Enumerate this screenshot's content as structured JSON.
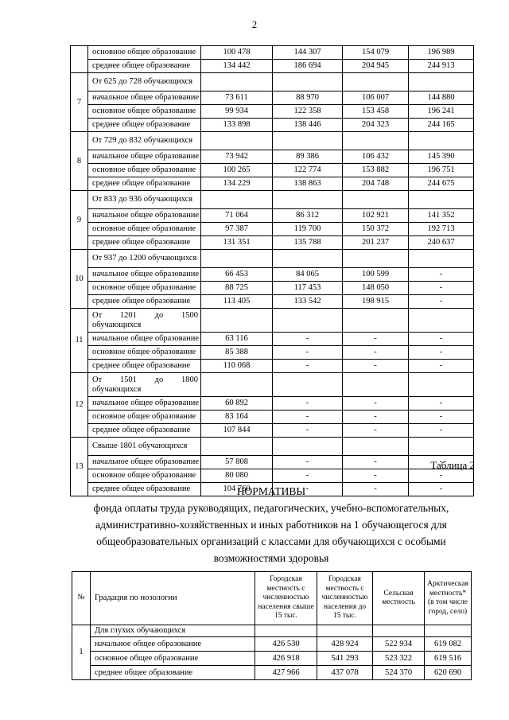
{
  "page": {
    "number": "2"
  },
  "colors": {
    "text": "#000000",
    "background": "#ffffff"
  },
  "caption": "Таблица 2",
  "title": {
    "heading": "НОРМАТИВЫ",
    "body": "фонда оплаты труда руководящих, педагогических, учебно-вспомогательных, административно-хозяйственных и иных работников на 1 обучающегося для общеобразовательных организаций с классами для обучающихся с особыми возможностями здоровья"
  },
  "table1": {
    "groups": [
      {
        "num": "",
        "rows": [
          {
            "label": "основное общее образование",
            "values": [
              "100 478",
              "144 307",
              "154 079",
              "196 989"
            ]
          },
          {
            "label": "среднее общее образование",
            "values": [
              "134 442",
              "186 694",
              "204 945",
              "244 913"
            ]
          }
        ]
      },
      {
        "num": "7",
        "category": "От 625 до 728 обучающихся",
        "rows": [
          {
            "label": "начальное общее образование",
            "values": [
              "73 611",
              "88 970",
              "106 007",
              "144 880"
            ]
          },
          {
            "label": "основное общее образование",
            "values": [
              "99 934",
              "122 358",
              "153 458",
              "196 241"
            ]
          },
          {
            "label": "среднее общее образование",
            "values": [
              "133 898",
              "138 446",
              "204 323",
              "244 165"
            ]
          }
        ]
      },
      {
        "num": "8",
        "category": "От 729 до 832 обучающихся",
        "rows": [
          {
            "label": "начальное общее образование",
            "values": [
              "73 942",
              "89 386",
              "106 432",
              "145 390"
            ]
          },
          {
            "label": "основное общее образование",
            "values": [
              "100 265",
              "122 774",
              "153 882",
              "196 751"
            ]
          },
          {
            "label": "среднее общее образование",
            "values": [
              "134 229",
              "138 863",
              "204 748",
              "244 675"
            ]
          }
        ]
      },
      {
        "num": "9",
        "category": "От 833 до 936 обучающихся",
        "rows": [
          {
            "label": "начальное общее образование",
            "values": [
              "71 064",
              "86 312",
              "102 921",
              "141 352"
            ]
          },
          {
            "label": "основное общее образование",
            "values": [
              "97 387",
              "119 700",
              "150 372",
              "192 713"
            ]
          },
          {
            "label": "среднее общее образование",
            "values": [
              "131 351",
              "135 788",
              "201 237",
              "240 637"
            ]
          }
        ]
      },
      {
        "num": "10",
        "category": "От 937 до 1200 обучающихся",
        "rows": [
          {
            "label": "начальное общее образование",
            "values": [
              "66 453",
              "84 065",
              "100 599",
              "-"
            ]
          },
          {
            "label": "основное общее образование",
            "values": [
              "88 725",
              "117 453",
              "148 050",
              "-"
            ]
          },
          {
            "label": "среднее общее образование",
            "values": [
              "113 405",
              "133 542",
              "198 915",
              "-"
            ]
          }
        ]
      },
      {
        "num": "11",
        "category": "От 1201 до 1500 обучающихся",
        "tall": true,
        "rows": [
          {
            "label": "начальное общее образование",
            "values": [
              "63 116",
              "-",
              "-",
              "-"
            ]
          },
          {
            "label": "основное общее образование",
            "values": [
              "85 388",
              "-",
              "-",
              "-"
            ]
          },
          {
            "label": "среднее общее образование",
            "values": [
              "110 068",
              "-",
              "-",
              "-"
            ]
          }
        ]
      },
      {
        "num": "12",
        "category": "От 1501 до 1800 обучающихся",
        "tall": true,
        "rows": [
          {
            "label": "начальное общее образование",
            "values": [
              "60 892",
              "-",
              "-",
              "-"
            ]
          },
          {
            "label": "основное общее образование",
            "values": [
              "83 164",
              "-",
              "-",
              "-"
            ]
          },
          {
            "label": "среднее общее образование",
            "values": [
              "107 844",
              "-",
              "-",
              "-"
            ]
          }
        ]
      },
      {
        "num": "13",
        "category": "Свыше 1801 обучающихся",
        "rows": [
          {
            "label": "начальное общее образование",
            "values": [
              "57 808",
              "-",
              "-",
              "-"
            ]
          },
          {
            "label": "основное общее образование",
            "values": [
              "80 080",
              "-",
              "-",
              "-"
            ]
          },
          {
            "label": "среднее общее образование",
            "values": [
              "104 760",
              "-",
              "-",
              "-"
            ]
          }
        ]
      }
    ]
  },
  "table2": {
    "headers": [
      "№",
      "Градация по нозологии",
      "Городская местность с численностью населения свыше 15 тыс.",
      "Городская местность с численностью населения до 15 тыс.",
      "Сельская местность",
      "Арктическая местность* (в том числе город, село)"
    ],
    "groups": [
      {
        "num": "1",
        "category": "Для глухих обучающихся",
        "rows": [
          {
            "label": "начальное общее образование",
            "values": [
              "426 530",
              "428 924",
              "522 934",
              "619 082"
            ]
          },
          {
            "label": "основное общее образование",
            "values": [
              "426 918",
              "541 293",
              "523 322",
              "619 516"
            ]
          },
          {
            "label": "среднее общее образование",
            "values": [
              "427 966",
              "437 078",
              "524 370",
              "620 690"
            ]
          }
        ]
      }
    ]
  }
}
